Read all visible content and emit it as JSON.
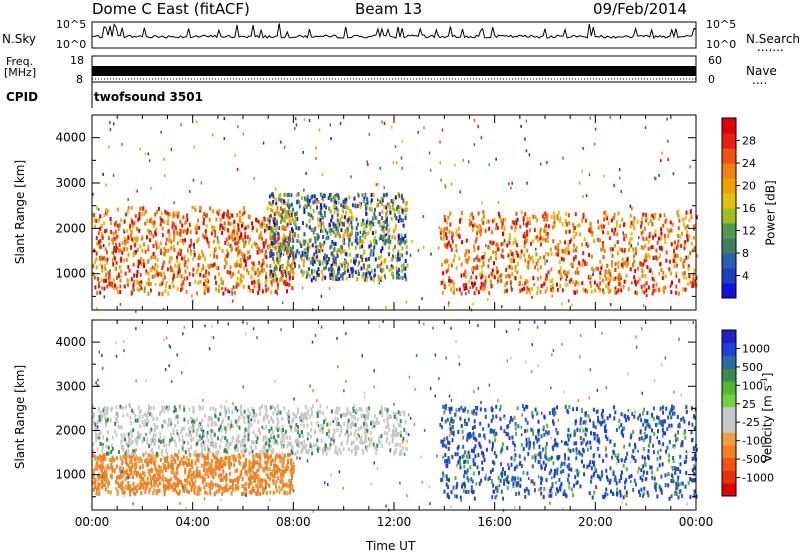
{
  "header": {
    "radar": "Dome C East (fitACF)",
    "beam": "Beam 13",
    "date": "09/Feb/2014"
  },
  "strip": {
    "nsky_label": "N.Sky",
    "nsearch_label": "N.Search",
    "nsearch_dots": ".......",
    "freq_label": "Freq.",
    "freq_unit": "[MHz]",
    "nave_label": "Nave",
    "nave_dots": "....",
    "cpid_label": "CPID",
    "cpid_value": "twofsound 3501",
    "nsky_ticks": [
      "10^5",
      "10^0"
    ],
    "nsearch_ticks": [
      "10^5",
      "10^0"
    ],
    "freq_ticks": [
      "18",
      "8"
    ],
    "nave_ticks": [
      "60",
      "0"
    ]
  },
  "chart_data": [
    {
      "type": "heatmap",
      "panel": "power",
      "ylabel": "Slant Range [km]",
      "ylim": [
        200,
        4500
      ],
      "y_ticks": [
        1000,
        2000,
        3000,
        4000
      ],
      "xlim": [
        0,
        24
      ],
      "colorbar": {
        "label": "Power [dB]",
        "ticks": [
          "4",
          "8",
          "12",
          "16",
          "20",
          "24",
          "28"
        ],
        "colors": [
          "#1010e0",
          "#1a40c0",
          "#2a5fb0",
          "#3f7f5f",
          "#4f9a4f",
          "#a0c020",
          "#e0c010",
          "#f0a000",
          "#f08010",
          "#f05010",
          "#e82010",
          "#e00000"
        ]
      },
      "echo_bands": [
        {
          "t0": 0.0,
          "t1": 8.0,
          "r0": 600,
          "r1": 2500,
          "level": "high"
        },
        {
          "t0": 7.0,
          "t1": 12.5,
          "r0": 900,
          "r1": 2800,
          "level": "mid"
        },
        {
          "t0": 13.8,
          "t1": 24.0,
          "r0": 600,
          "r1": 2400,
          "level": "high"
        }
      ]
    },
    {
      "type": "heatmap",
      "panel": "velocity",
      "ylabel": "Slant Range [km]",
      "xlabel": "Time UT",
      "ylim": [
        200,
        4500
      ],
      "y_ticks": [
        1000,
        2000,
        3000,
        4000
      ],
      "xlim": [
        0,
        24
      ],
      "x_ticks": [
        "00:00",
        "04:00",
        "08:00",
        "12:00",
        "16:00",
        "20:00",
        "00:00"
      ],
      "colorbar": {
        "label": "Velocity [m s",
        "label_sup": "-1",
        "label_end": "]",
        "ticks": [
          "1000",
          "500",
          "100",
          "25",
          "-25",
          "-100",
          "-500",
          "-1000"
        ],
        "colors": [
          "#2020c8",
          "#2040d8",
          "#2a6aa0",
          "#3a8a50",
          "#50b830",
          "#70d040",
          "#c8c8c8",
          "#c8c8c8",
          "#f0a040",
          "#f08020",
          "#f05010",
          "#e83010",
          "#e00000"
        ]
      },
      "echo_bands": [
        {
          "t0": 0.0,
          "t1": 8.0,
          "r0": 600,
          "r1": 1500,
          "level": "away"
        },
        {
          "t0": 0.0,
          "t1": 12.5,
          "r0": 1500,
          "r1": 2600,
          "level": "zero"
        },
        {
          "t0": 13.8,
          "t1": 24.0,
          "r0": 500,
          "r1": 2600,
          "level": "toward"
        }
      ]
    }
  ]
}
